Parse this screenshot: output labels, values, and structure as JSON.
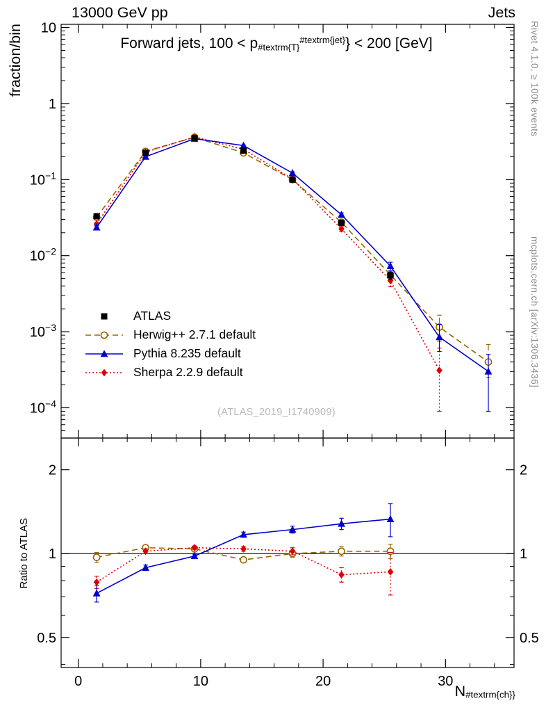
{
  "header": {
    "left": "13000 GeV pp",
    "right": "Jets"
  },
  "credits": {
    "right_top": "Rivet 4.1.0, ≥ 100k events",
    "right_bottom": "mcplots.cern.ch [arXiv:1306.3436]"
  },
  "watermark": "(ATLAS_2019_I1740909)",
  "panel_title": {
    "pre": "Forward jets, 100 < p",
    "sub": "#textrm{T}",
    "sup": "#textrm{jet}",
    "post": "} < 200 [GeV]"
  },
  "axes": {
    "y_label": "fraction/bin",
    "ratio_label": "Ratio to ATLAS",
    "x_label_pre": "N",
    "x_label_sub": "#textrm{ch}}"
  },
  "chart_data": {
    "type": "line",
    "title": "Forward jets, 100 < p_#textrm{T}^{#textrm{jet}} < 200 [GeV]",
    "xlabel": "N_#textrm{ch}",
    "ylabel": "fraction/bin",
    "ratio_ylabel": "Ratio to ATLAS",
    "x": [
      1.5,
      5.5,
      9.5,
      13.5,
      17.5,
      21.5,
      25.5,
      29.5,
      33.5
    ],
    "layout": {
      "xmin": -1.4,
      "xmax": 35.6,
      "ymin": 4e-05,
      "ymax": 11.0,
      "rmin": 0.39,
      "rmax": 2.6,
      "y_scale": "log",
      "ratio_scale": "log",
      "grid": false,
      "legend_position": "middle-left",
      "x_ticks": [
        {
          "v": 0,
          "label": "0"
        },
        {
          "v": 10,
          "label": "10"
        },
        {
          "v": 20,
          "label": "20"
        },
        {
          "v": 30,
          "label": "30"
        }
      ],
      "x_minor_step": 2,
      "y_ticks": [
        {
          "v": 10,
          "base": "10",
          "exp": ""
        },
        {
          "v": 1,
          "base": "1",
          "exp": ""
        },
        {
          "v": 0.1,
          "base": "10",
          "exp": "−1"
        },
        {
          "v": 0.01,
          "base": "10",
          "exp": "−2"
        },
        {
          "v": 0.001,
          "base": "10",
          "exp": "−3"
        },
        {
          "v": 0.0001,
          "base": "10",
          "exp": "−4"
        }
      ],
      "ratio_ticks": [
        {
          "v": 2,
          "label": "2"
        },
        {
          "v": 1,
          "label": "1"
        },
        {
          "v": 0.5,
          "label": "0.5"
        }
      ],
      "ratio_minor": [
        0.4,
        0.6,
        0.7,
        0.8,
        0.9
      ]
    },
    "series": [
      {
        "id": "atlas",
        "name": "ATLAS",
        "color": "#000000",
        "marker": "square",
        "line": "none",
        "values": [
          0.033,
          0.225,
          0.35,
          0.24,
          0.1,
          0.027,
          0.0055,
          null,
          null
        ],
        "errors": [
          [
            0.002,
            0.002
          ],
          [
            0.008,
            0.008
          ],
          [
            0.01,
            0.01
          ],
          [
            0.008,
            0.008
          ],
          [
            0.004,
            0.004
          ],
          [
            0.0015,
            0.0015
          ],
          [
            0.0006,
            0.0006
          ],
          null,
          null
        ],
        "ratio": null,
        "ratio_reference": true
      },
      {
        "id": "herwig",
        "name": "Herwig++ 2.7.1 default",
        "color": "#996600",
        "marker": "circle",
        "line": "dashed",
        "values": [
          0.032,
          0.235,
          0.36,
          0.225,
          0.1,
          0.0275,
          0.0056,
          0.00115,
          0.0004
        ],
        "errors": [
          [
            0.001,
            0.001
          ],
          [
            0.004,
            0.004
          ],
          [
            0.005,
            0.005
          ],
          [
            0.004,
            0.004
          ],
          [
            0.003,
            0.003
          ],
          [
            0.0012,
            0.0012
          ],
          [
            0.0005,
            0.0005
          ],
          [
            0.0004,
            0.0005
          ],
          [
            0.00015,
            0.00028
          ]
        ],
        "ratio": [
          0.97,
          1.05,
          1.04,
          0.95,
          1.0,
          1.02,
          1.02
        ],
        "ratio_errors": [
          [
            0.04,
            0.04
          ],
          [
            0.02,
            0.02
          ],
          [
            0.02,
            0.02
          ],
          [
            0.02,
            0.02
          ],
          [
            0.03,
            0.03
          ],
          [
            0.04,
            0.04
          ],
          [
            0.06,
            0.06
          ]
        ]
      },
      {
        "id": "pythia",
        "name": "Pythia 8.235 default",
        "color": "#0000cc",
        "marker": "triangle",
        "line": "solid",
        "values": [
          0.0235,
          0.2,
          0.345,
          0.28,
          0.122,
          0.0345,
          0.0073,
          0.00085,
          0.0003
        ],
        "errors": [
          [
            0.0012,
            0.0012
          ],
          [
            0.004,
            0.004
          ],
          [
            0.005,
            0.005
          ],
          [
            0.005,
            0.005
          ],
          [
            0.004,
            0.004
          ],
          [
            0.002,
            0.002
          ],
          [
            0.0009,
            0.0009
          ],
          [
            0.0003,
            0.0004
          ],
          [
            0.00021,
            0.0002
          ]
        ],
        "ratio": [
          0.72,
          0.89,
          0.98,
          1.17,
          1.22,
          1.28,
          1.33
        ],
        "ratio_errors": [
          [
            0.05,
            0.05
          ],
          [
            0.02,
            0.02
          ],
          [
            0.015,
            0.015
          ],
          [
            0.025,
            0.025
          ],
          [
            0.035,
            0.035
          ],
          [
            0.06,
            0.06
          ],
          [
            0.18,
            0.18
          ]
        ]
      },
      {
        "id": "sherpa",
        "name": "Sherpa 2.2.9 default",
        "color": "#dd0000",
        "marker": "diamond",
        "line": "dotted",
        "values": [
          0.026,
          0.23,
          0.365,
          0.25,
          0.102,
          0.0225,
          0.0047,
          0.00031,
          null
        ],
        "errors": [
          [
            0.0013,
            0.0013
          ],
          [
            0.004,
            0.004
          ],
          [
            0.005,
            0.005
          ],
          [
            0.004,
            0.004
          ],
          [
            0.003,
            0.003
          ],
          [
            0.0015,
            0.0015
          ],
          [
            0.0008,
            0.0008
          ],
          [
            0.00022,
            0.0003
          ],
          null
        ],
        "ratio": [
          0.79,
          1.02,
          1.05,
          1.04,
          1.02,
          0.84,
          0.86
        ],
        "ratio_errors": [
          [
            0.04,
            0.04
          ],
          [
            0.02,
            0.02
          ],
          [
            0.015,
            0.015
          ],
          [
            0.02,
            0.02
          ],
          [
            0.03,
            0.03
          ],
          [
            0.05,
            0.05
          ],
          [
            0.15,
            0.15
          ]
        ]
      }
    ]
  }
}
